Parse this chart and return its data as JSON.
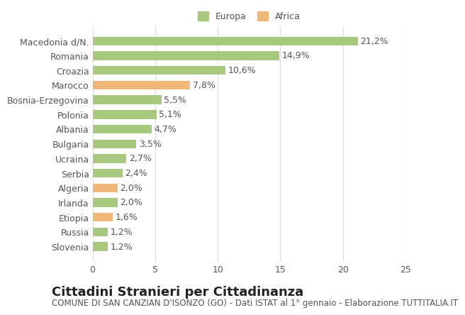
{
  "categories": [
    "Slovenia",
    "Russia",
    "Etiopia",
    "Irlanda",
    "Algeria",
    "Serbia",
    "Ucraina",
    "Bulgaria",
    "Albania",
    "Polonia",
    "Bosnia-Erzegovina",
    "Marocco",
    "Croazia",
    "Romania",
    "Macedonia d/N."
  ],
  "values": [
    1.2,
    1.2,
    1.6,
    2.0,
    2.0,
    2.4,
    2.7,
    3.5,
    4.7,
    5.1,
    5.5,
    7.8,
    10.6,
    14.9,
    21.2
  ],
  "continents": [
    "Europa",
    "Europa",
    "Africa",
    "Europa",
    "Africa",
    "Europa",
    "Europa",
    "Europa",
    "Europa",
    "Europa",
    "Europa",
    "Africa",
    "Europa",
    "Europa",
    "Europa"
  ],
  "color_europa": "#a8c880",
  "color_africa": "#f0b878",
  "label_europa": "Europa",
  "label_africa": "Africa",
  "xlim": [
    0,
    25
  ],
  "xlabel": "",
  "title": "Cittadini Stranieri per Cittadinanza",
  "subtitle": "COMUNE DI SAN CANZIAN D'ISONZO (GO) - Dati ISTAT al 1° gennaio - Elaborazione TUTTITALIA.IT",
  "title_fontsize": 13,
  "subtitle_fontsize": 8.5,
  "label_fontsize": 9,
  "tick_fontsize": 9,
  "value_fontsize": 9,
  "bg_color": "#ffffff",
  "grid_color": "#dddddd",
  "bar_height": 0.6
}
